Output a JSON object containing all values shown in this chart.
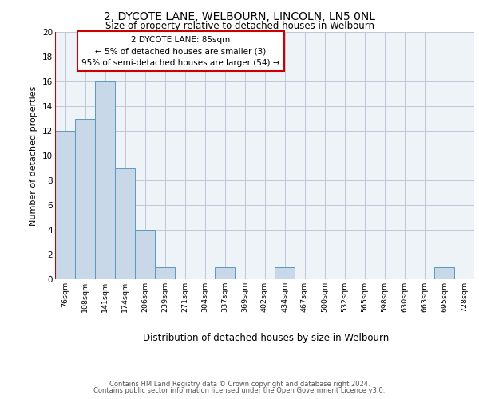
{
  "title": "2, DYCOTE LANE, WELBOURN, LINCOLN, LN5 0NL",
  "subtitle": "Size of property relative to detached houses in Welbourn",
  "xlabel": "Distribution of detached houses by size in Welbourn",
  "ylabel": "Number of detached properties",
  "categories": [
    "76sqm",
    "108sqm",
    "141sqm",
    "174sqm",
    "206sqm",
    "239sqm",
    "271sqm",
    "304sqm",
    "337sqm",
    "369sqm",
    "402sqm",
    "434sqm",
    "467sqm",
    "500sqm",
    "532sqm",
    "565sqm",
    "598sqm",
    "630sqm",
    "663sqm",
    "695sqm",
    "728sqm"
  ],
  "values": [
    12,
    13,
    16,
    9,
    4,
    1,
    0,
    0,
    1,
    0,
    0,
    1,
    0,
    0,
    0,
    0,
    0,
    0,
    0,
    1,
    0
  ],
  "bar_color": "#c8d8e8",
  "bar_edge_color": "#5a9abf",
  "annotation_text": "2 DYCOTE LANE: 85sqm\n← 5% of detached houses are smaller (3)\n95% of semi-detached houses are larger (54) →",
  "annotation_box_color": "#ffffff",
  "annotation_box_edge": "#cc0000",
  "vline_color": "#cc0000",
  "ylim": [
    0,
    20
  ],
  "yticks": [
    0,
    2,
    4,
    6,
    8,
    10,
    12,
    14,
    16,
    18,
    20
  ],
  "footer_line1": "Contains HM Land Registry data © Crown copyright and database right 2024.",
  "footer_line2": "Contains public sector information licensed under the Open Government Licence v3.0.",
  "bg_color": "#eef3f8",
  "grid_color": "#c0c8d8"
}
